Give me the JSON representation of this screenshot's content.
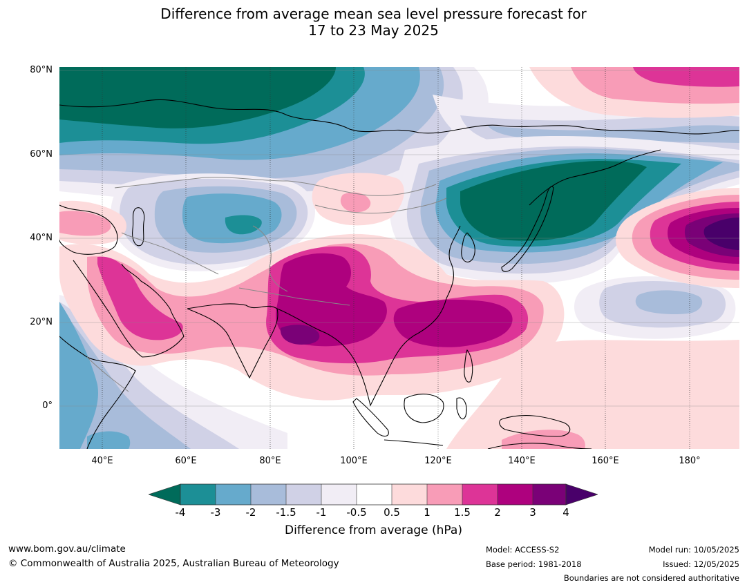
{
  "title": {
    "line1": "Difference from average mean sea level pressure forecast for",
    "line2": "17 to 23 May 2025"
  },
  "map": {
    "lat_labels": [
      "80°N",
      "60°N",
      "40°N",
      "20°N",
      "0°"
    ],
    "lon_labels": [
      "40°E",
      "60°E",
      "80°E",
      "100°E",
      "120°E",
      "140°E",
      "160°E",
      "180°"
    ]
  },
  "colorbar": {
    "ticks": [
      "-4",
      "-3",
      "-2",
      "-1.5",
      "-1",
      "-0.5",
      "0.5",
      "1",
      "1.5",
      "2",
      "3",
      "4"
    ],
    "label": "Difference from average (hPa)",
    "colors": {
      "extend_low": "#006b5a",
      "m4_m3": "#1c8f96",
      "m3_m2": "#66aacc",
      "m2_m15": "#a8bcda",
      "m15_m1": "#d0d1e6",
      "m1_m05": "#f1edf5",
      "m05_05": "#ffffff",
      "p05_1": "#fddbdc",
      "p1_15": "#f89cb7",
      "p15_2": "#dd3497",
      "p2_3": "#ae017e",
      "p3_4": "#7a0177",
      "extend_high": "#49006a"
    }
  },
  "footer": {
    "website": "www.bom.gov.au/climate",
    "copyright": "© Commonwealth of Australia 2025, Australian Bureau of Meteorology",
    "model": "Model: ACCESS-S2",
    "base_period": "Base period: 1981-2018",
    "model_run": "Model run: 10/05/2025",
    "issued": "Issued: 12/05/2025",
    "disclaimer": "Boundaries are not considered authoritative"
  }
}
